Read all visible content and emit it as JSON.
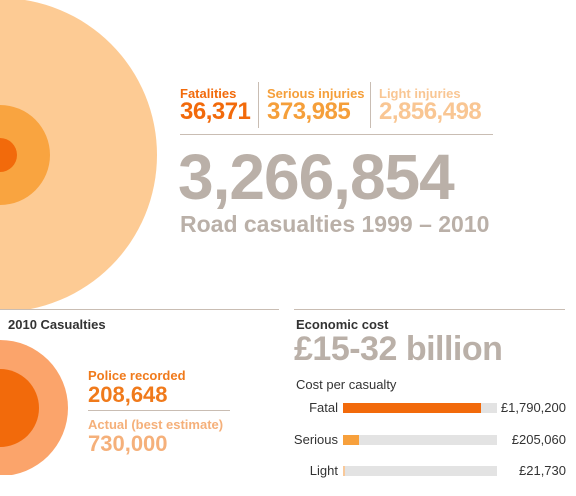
{
  "top": {
    "fatalities": {
      "label": "Fatalities",
      "value": "36,371",
      "color": "#f26a0b"
    },
    "serious": {
      "label": "Serious injuries",
      "value": "373,985",
      "color": "#f59f3a"
    },
    "light": {
      "label": "Light injuries",
      "value": "2,856,498",
      "color": "#f9c693"
    },
    "total": "3,266,854",
    "subtitle": "Road casualties 1999 – 2010"
  },
  "casualties_2010": {
    "title": "2010 Casualties",
    "police_label": "Police recorded",
    "police_value": "208,648",
    "actual_label": "Actual (best estimate)",
    "actual_value": "730,000"
  },
  "economic": {
    "title": "Economic cost",
    "value": "£15-32 billion",
    "cost_title": "Cost per casualty"
  },
  "chart_data": [
    {
      "type": "pie",
      "title": "",
      "series": [
        {
          "name": "Fatalities",
          "value": 36371
        },
        {
          "name": "Serious injuries",
          "value": 373985
        },
        {
          "name": "Light injuries",
          "value": 2856498
        }
      ],
      "total": 3266854
    },
    {
      "type": "pie",
      "title": "2010 Casualties",
      "series": [
        {
          "name": "Police recorded",
          "value": 208648
        },
        {
          "name": "Actual (best estimate)",
          "value": 730000
        }
      ]
    },
    {
      "type": "bar",
      "title": "Cost per casualty",
      "categories": [
        "Fatal",
        "Serious",
        "Light"
      ],
      "values": [
        1790200,
        205060,
        21730
      ],
      "labels": [
        "£1,790,200",
        "£205,060",
        "£21,730"
      ],
      "xlim": [
        0,
        2000000
      ]
    }
  ]
}
